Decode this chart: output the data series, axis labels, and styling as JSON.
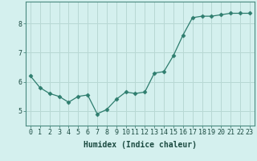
{
  "x": [
    0,
    1,
    2,
    3,
    4,
    5,
    6,
    7,
    8,
    9,
    10,
    11,
    12,
    13,
    14,
    15,
    16,
    17,
    18,
    19,
    20,
    21,
    22,
    23
  ],
  "y": [
    6.2,
    5.8,
    5.6,
    5.5,
    5.3,
    5.5,
    5.55,
    4.9,
    5.05,
    5.4,
    5.65,
    5.6,
    5.65,
    6.3,
    6.35,
    6.9,
    7.6,
    8.2,
    8.25,
    8.25,
    8.3,
    8.35,
    8.35,
    8.35
  ],
  "line_color": "#2e7d6e",
  "marker": "D",
  "marker_size": 2.5,
  "background_color": "#d4f0ee",
  "grid_color": "#b8d8d4",
  "xlabel": "Humidex (Indice chaleur)",
  "xlabel_fontsize": 7,
  "tick_fontsize": 6,
  "ylim": [
    4.5,
    8.75
  ],
  "yticks": [
    5,
    6,
    7,
    8
  ],
  "xlim": [
    -0.5,
    23.5
  ],
  "title": ""
}
